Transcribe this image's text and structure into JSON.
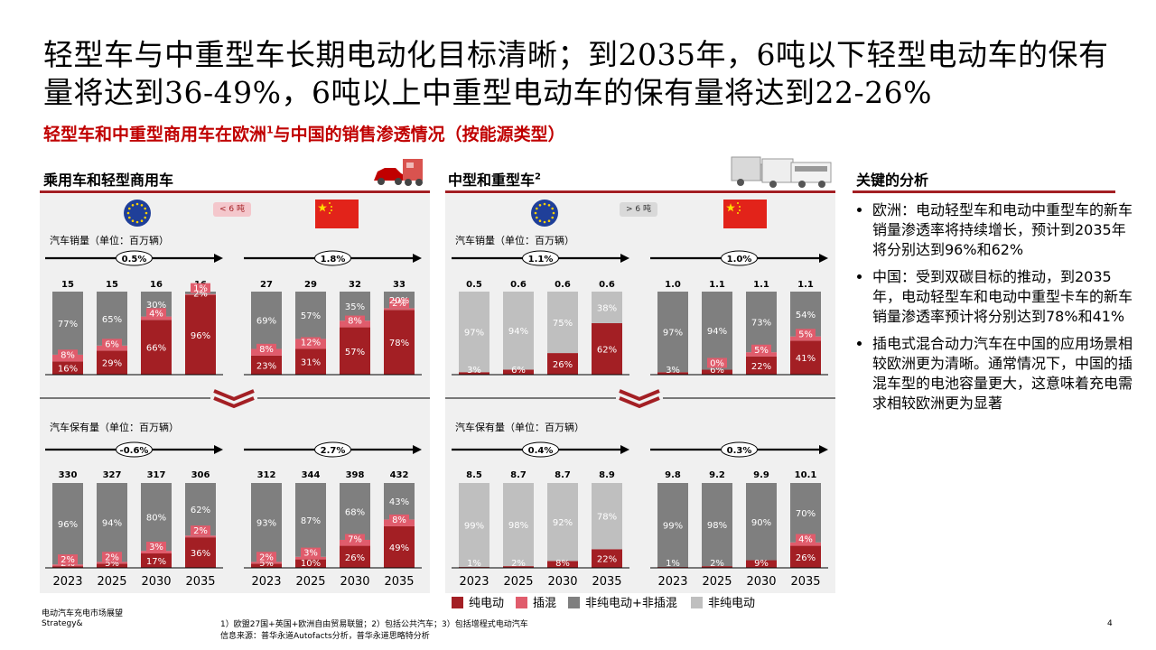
{
  "title": "轻型车与中重型车长期电动化目标清晰；到2035年，6吨以下轻型电动车的保有量将达到36-49%，6吨以上中重型电动车的保有量将达到22-26%",
  "subtitle": "轻型车和中重型商用车在欧洲",
  "subtitle_sup": "1",
  "subtitle_rest": "与中国的销售渗透情况（按能源类型）",
  "left_section": {
    "title": "乘用车和轻型商用车",
    "pill": "< 6 吨"
  },
  "right_section": {
    "title": "中型和重型车",
    "title_sup": "2",
    "pill": "> 6 吨"
  },
  "analysis": {
    "title": "关键的分析",
    "items": [
      "欧洲：电动轻型车和电动中重型车的新车销量渗透率将持续增长，预计到2035年将分别达到96%和62%",
      "中国：受到双碳目标的推动，到2035年，电动轻型车和电动中重型卡车的新车销量渗透率预计将分别达到78%和41%",
      "插电式混合动力汽车在中国的应用场景相较欧洲更为清晰。通常情况下，中国的插混车型的电池容量更大，这意味着充电需求相较欧洲更为显著"
    ]
  },
  "unit_sales": "汽车销量（单位：百万辆）",
  "unit_stock": "汽车保有量（单位：百万辆）",
  "years": [
    "2023",
    "2025",
    "2030",
    "2035"
  ],
  "legend": [
    {
      "label": "纯电动",
      "color": "#a31f24"
    },
    {
      "label": "插混",
      "color": "#e05c6c"
    },
    {
      "label": "非纯电动+非插混",
      "color": "#7f7f7f"
    },
    {
      "label": "非纯电动",
      "color": "#bfbfbf"
    }
  ],
  "footer": {
    "left1": "电动汽车充电市场展望",
    "left2": "Strategy&",
    "note1": "1）欧盟27国+英国+欧洲自由贸易联盟；2）包括公共汽车；3）包括增程式电动汽车",
    "note2": "信息来源：普华永道Autofacts分析，普华永道思略特分析",
    "page": "4"
  },
  "chart_data": [
    {
      "type": "bar",
      "name": "欧洲 乘用车和轻型商用车 销量",
      "categories": [
        "2023",
        "2025",
        "2030",
        "2035"
      ],
      "totals": [
        "15",
        "15",
        "16",
        "16"
      ],
      "cagr": "0.5%",
      "variant": "light",
      "series": [
        {
          "name": "纯电动",
          "values": [
            16,
            29,
            66,
            96
          ]
        },
        {
          "name": "插混",
          "values": [
            8,
            6,
            4,
            1
          ]
        },
        {
          "name": "非纯电动+非插混",
          "values": [
            77,
            65,
            30,
            2
          ]
        }
      ]
    },
    {
      "type": "bar",
      "name": "中国 乘用车和轻型商用车 销量",
      "categories": [
        "2023",
        "2025",
        "2030",
        "2035"
      ],
      "totals": [
        "27",
        "29",
        "32",
        "33"
      ],
      "cagr": "1.8%",
      "variant": "light",
      "series": [
        {
          "name": "纯电动",
          "values": [
            23,
            31,
            57,
            78
          ]
        },
        {
          "name": "插混",
          "values": [
            8,
            12,
            8,
            2
          ]
        },
        {
          "name": "非纯电动+非插混",
          "values": [
            69,
            57,
            35,
            20
          ]
        }
      ]
    },
    {
      "type": "bar",
      "name": "欧洲 中型和重型车 销量",
      "categories": [
        "2023",
        "2025",
        "2030",
        "2035"
      ],
      "totals": [
        "0.5",
        "0.6",
        "0.6",
        "0.6"
      ],
      "cagr": "1.1%",
      "variant": "heavy",
      "series": [
        {
          "name": "纯电动",
          "values": [
            3,
            6,
            26,
            62
          ]
        },
        {
          "name": "插混",
          "values": [
            null,
            null,
            null,
            null
          ]
        },
        {
          "name": "非纯电动",
          "values": [
            97,
            94,
            75,
            38
          ]
        }
      ]
    },
    {
      "type": "bar",
      "name": "中国 中型和重型车 销量",
      "categories": [
        "2023",
        "2025",
        "2030",
        "2035"
      ],
      "totals": [
        "1.0",
        "1.1",
        "1.1",
        "1.1"
      ],
      "cagr": "1.0%",
      "variant": "light",
      "series": [
        {
          "name": "纯电动",
          "values": [
            3,
            6,
            22,
            41
          ]
        },
        {
          "name": "插混",
          "values": [
            null,
            0,
            5,
            5
          ]
        },
        {
          "name": "非纯电动+非插混",
          "values": [
            97,
            94,
            73,
            54
          ]
        }
      ]
    },
    {
      "type": "bar",
      "name": "欧洲 乘用车和轻型商用车 保有量",
      "categories": [
        "2023",
        "2025",
        "2030",
        "2035"
      ],
      "totals": [
        "330",
        "327",
        "317",
        "306"
      ],
      "cagr": "-0.6%",
      "variant": "light",
      "series": [
        {
          "name": "纯电动",
          "values": [
            2,
            5,
            17,
            36
          ]
        },
        {
          "name": "插混",
          "values": [
            2,
            2,
            3,
            2
          ]
        },
        {
          "name": "非纯电动+非插混",
          "values": [
            96,
            94,
            80,
            62
          ]
        }
      ]
    },
    {
      "type": "bar",
      "name": "中国 乘用车和轻型商用车 保有量",
      "categories": [
        "2023",
        "2025",
        "2030",
        "2035"
      ],
      "totals": [
        "312",
        "344",
        "398",
        "432"
      ],
      "cagr": "2.7%",
      "variant": "light",
      "series": [
        {
          "name": "纯电动",
          "values": [
            5,
            10,
            26,
            49
          ]
        },
        {
          "name": "插混",
          "values": [
            2,
            3,
            7,
            8
          ]
        },
        {
          "name": "非纯电动+非插混",
          "values": [
            93,
            87,
            68,
            43
          ]
        }
      ]
    },
    {
      "type": "bar",
      "name": "欧洲 中型和重型车 保有量",
      "categories": [
        "2023",
        "2025",
        "2030",
        "2035"
      ],
      "totals": [
        "8.5",
        "8.7",
        "8.7",
        "8.9"
      ],
      "cagr": "0.4%",
      "variant": "heavy",
      "series": [
        {
          "name": "纯电动",
          "values": [
            1,
            2,
            8,
            22
          ]
        },
        {
          "name": "插混",
          "values": [
            null,
            null,
            null,
            null
          ]
        },
        {
          "name": "非纯电动",
          "values": [
            99,
            98,
            92,
            78
          ]
        }
      ]
    },
    {
      "type": "bar",
      "name": "中国 中型和重型车 保有量",
      "categories": [
        "2023",
        "2025",
        "2030",
        "2035"
      ],
      "totals": [
        "9.8",
        "9.2",
        "9.9",
        "10.1"
      ],
      "cagr": "0.3%",
      "variant": "light",
      "series": [
        {
          "name": "纯电动",
          "values": [
            1,
            2,
            9,
            26
          ]
        },
        {
          "name": "插混",
          "values": [
            null,
            null,
            null,
            4
          ]
        },
        {
          "name": "非纯电动+非插混",
          "values": [
            99,
            98,
            90,
            70
          ]
        }
      ]
    }
  ]
}
